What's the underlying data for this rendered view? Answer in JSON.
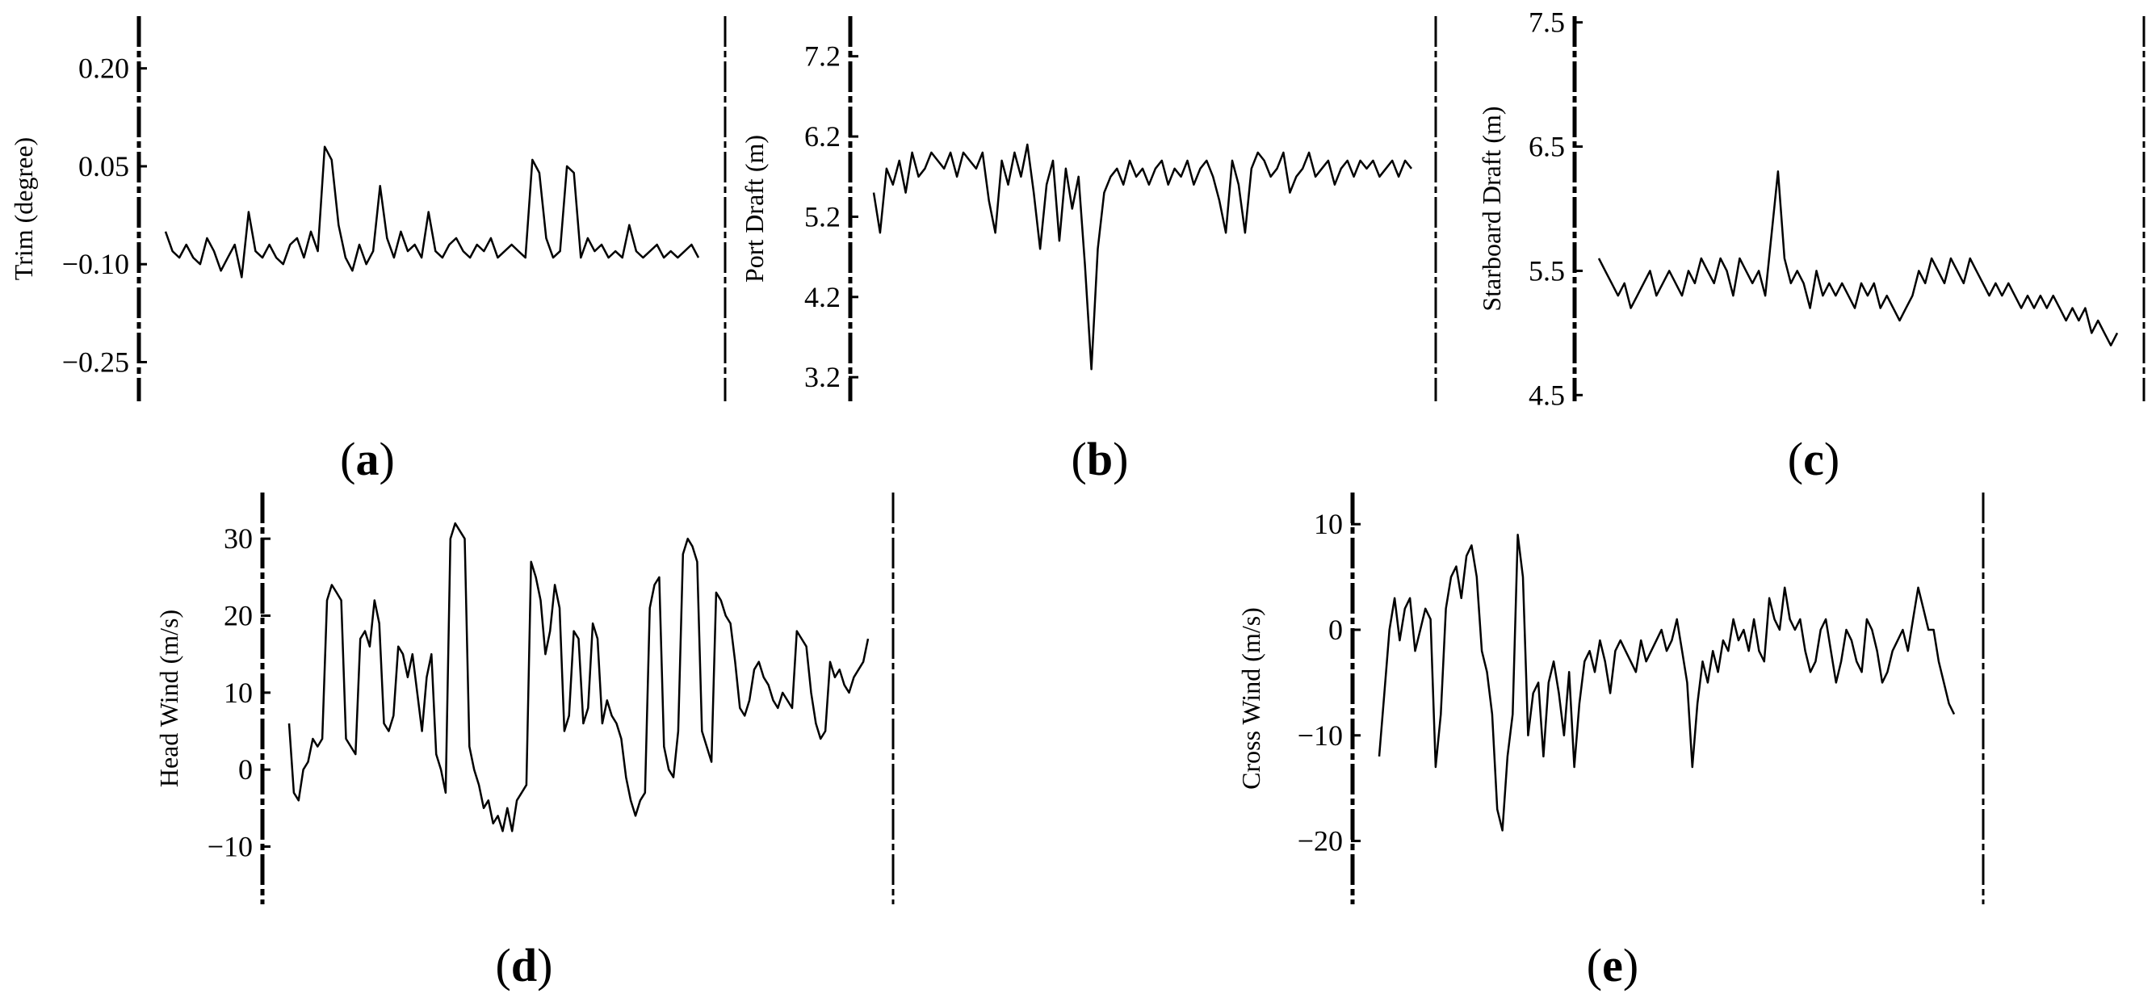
{
  "figure": {
    "panels": [
      {
        "label": "a"
      },
      {
        "label": "b"
      },
      {
        "label": "c"
      },
      {
        "label": "d"
      },
      {
        "label": "e"
      }
    ]
  },
  "chart_data": [
    {
      "type": "line",
      "panel": "a",
      "title": "",
      "xlabel": "",
      "ylabel": "Trim (degree)",
      "yticks": [
        0.2,
        0.05,
        -0.1,
        -0.25
      ],
      "ytick_labels": [
        "0.20",
        "0.05",
        "−0.10",
        "−0.25"
      ],
      "ylim": [
        -0.31,
        0.28
      ],
      "series": [
        {
          "values": [
            -0.05,
            -0.08,
            -0.09,
            -0.07,
            -0.09,
            -0.1,
            -0.06,
            -0.08,
            -0.11,
            -0.09,
            -0.07,
            -0.12,
            -0.02,
            -0.08,
            -0.09,
            -0.07,
            -0.09,
            -0.1,
            -0.07,
            -0.06,
            -0.09,
            -0.05,
            -0.08,
            0.08,
            0.06,
            -0.04,
            -0.09,
            -0.11,
            -0.07,
            -0.1,
            -0.08,
            0.02,
            -0.06,
            -0.09,
            -0.05,
            -0.08,
            -0.07,
            -0.09,
            -0.02,
            -0.08,
            -0.09,
            -0.07,
            -0.06,
            -0.08,
            -0.09,
            -0.07,
            -0.08,
            -0.06,
            -0.09,
            -0.08,
            -0.07,
            -0.08,
            -0.09,
            0.06,
            0.04,
            -0.06,
            -0.09,
            -0.08,
            0.05,
            0.04,
            -0.09,
            -0.06,
            -0.08,
            -0.07,
            -0.09,
            -0.08,
            -0.09,
            -0.04,
            -0.08,
            -0.09,
            -0.08,
            -0.07,
            -0.09,
            -0.08,
            -0.09,
            -0.08,
            -0.07,
            -0.09
          ]
        }
      ]
    },
    {
      "type": "line",
      "panel": "b",
      "title": "",
      "xlabel": "",
      "ylabel": "Port Draft (m)",
      "yticks": [
        7.2,
        6.2,
        5.2,
        4.2,
        3.2
      ],
      "ytick_labels": [
        "7.2",
        "6.2",
        "5.2",
        "4.2",
        "3.2"
      ],
      "ylim": [
        2.9,
        7.7
      ],
      "series": [
        {
          "values": [
            5.5,
            5.0,
            5.8,
            5.6,
            5.9,
            5.5,
            6.0,
            5.7,
            5.8,
            6.0,
            5.9,
            5.8,
            6.0,
            5.7,
            6.0,
            5.9,
            5.8,
            6.0,
            5.4,
            5.0,
            5.9,
            5.6,
            6.0,
            5.7,
            6.1,
            5.5,
            4.8,
            5.6,
            5.9,
            4.9,
            5.8,
            5.3,
            5.7,
            4.6,
            3.3,
            4.8,
            5.5,
            5.7,
            5.8,
            5.6,
            5.9,
            5.7,
            5.8,
            5.6,
            5.8,
            5.9,
            5.6,
            5.8,
            5.7,
            5.9,
            5.6,
            5.8,
            5.9,
            5.7,
            5.4,
            5.0,
            5.9,
            5.6,
            5.0,
            5.8,
            6.0,
            5.9,
            5.7,
            5.8,
            6.0,
            5.5,
            5.7,
            5.8,
            6.0,
            5.7,
            5.8,
            5.9,
            5.6,
            5.8,
            5.9,
            5.7,
            5.9,
            5.8,
            5.9,
            5.7,
            5.8,
            5.9,
            5.7,
            5.9,
            5.8
          ]
        }
      ]
    },
    {
      "type": "line",
      "panel": "c",
      "title": "",
      "xlabel": "",
      "ylabel": "Starboard Draft (m)",
      "yticks": [
        7.5,
        6.5,
        5.5,
        4.5
      ],
      "ytick_labels": [
        "7.5",
        "6.5",
        "5.5",
        "4.5"
      ],
      "ylim": [
        4.45,
        7.55
      ],
      "series": [
        {
          "values": [
            5.6,
            5.5,
            5.4,
            5.3,
            5.4,
            5.2,
            5.3,
            5.4,
            5.5,
            5.3,
            5.4,
            5.5,
            5.4,
            5.3,
            5.5,
            5.4,
            5.6,
            5.5,
            5.4,
            5.6,
            5.5,
            5.3,
            5.6,
            5.5,
            5.4,
            5.5,
            5.3,
            5.8,
            6.3,
            5.6,
            5.4,
            5.5,
            5.4,
            5.2,
            5.5,
            5.3,
            5.4,
            5.3,
            5.4,
            5.3,
            5.2,
            5.4,
            5.3,
            5.4,
            5.2,
            5.3,
            5.2,
            5.1,
            5.2,
            5.3,
            5.5,
            5.4,
            5.6,
            5.5,
            5.4,
            5.6,
            5.5,
            5.4,
            5.6,
            5.5,
            5.4,
            5.3,
            5.4,
            5.3,
            5.4,
            5.3,
            5.2,
            5.3,
            5.2,
            5.3,
            5.2,
            5.3,
            5.2,
            5.1,
            5.2,
            5.1,
            5.2,
            5.0,
            5.1,
            5.0,
            4.9,
            5.0
          ]
        }
      ]
    },
    {
      "type": "line",
      "panel": "d",
      "title": "",
      "xlabel": "",
      "ylabel": "Head Wind (m/s)",
      "yticks": [
        30,
        20,
        10,
        0,
        -10
      ],
      "ytick_labels": [
        "30",
        "20",
        "10",
        "0",
        "−10"
      ],
      "ylim": [
        -17.5,
        36
      ],
      "series": [
        {
          "values": [
            6,
            -3,
            -4,
            0,
            1,
            4,
            3,
            4,
            22,
            24,
            23,
            22,
            4,
            3,
            2,
            17,
            18,
            16,
            22,
            19,
            6,
            5,
            7,
            16,
            15,
            12,
            15,
            10,
            5,
            12,
            15,
            2,
            0,
            -3,
            30,
            32,
            31,
            30,
            3,
            0,
            -2,
            -5,
            -4,
            -7,
            -6,
            -8,
            -5,
            -8,
            -4,
            -3,
            -2,
            27,
            25,
            22,
            15,
            18,
            24,
            21,
            5,
            7,
            18,
            17,
            6,
            8,
            19,
            17,
            6,
            9,
            7,
            6,
            4,
            -1,
            -4,
            -6,
            -4,
            -3,
            21,
            24,
            25,
            3,
            0,
            -1,
            5,
            28,
            30,
            29,
            27,
            5,
            3,
            1,
            23,
            22,
            20,
            19,
            14,
            8,
            7,
            9,
            13,
            14,
            12,
            11,
            9,
            8,
            10,
            9,
            8,
            18,
            17,
            16,
            10,
            6,
            4,
            5,
            14,
            12,
            13,
            11,
            10,
            12,
            13,
            14,
            17
          ]
        }
      ]
    },
    {
      "type": "line",
      "panel": "e",
      "title": "",
      "xlabel": "",
      "ylabel": "Cross Wind (m/s)",
      "yticks": [
        10,
        0,
        -10,
        -20
      ],
      "ytick_labels": [
        "10",
        "0",
        "−10",
        "−20"
      ],
      "ylim": [
        -26,
        13
      ],
      "series": [
        {
          "values": [
            -12,
            -6,
            0,
            3,
            -1,
            2,
            3,
            -2,
            0,
            2,
            1,
            -13,
            -8,
            2,
            5,
            6,
            3,
            7,
            8,
            5,
            -2,
            -4,
            -8,
            -17,
            -19,
            -12,
            -8,
            9,
            5,
            -10,
            -6,
            -5,
            -12,
            -5,
            -3,
            -6,
            -10,
            -4,
            -13,
            -7,
            -3,
            -2,
            -4,
            -1,
            -3,
            -6,
            -2,
            -1,
            -2,
            -3,
            -4,
            -1,
            -3,
            -2,
            -1,
            0,
            -2,
            -1,
            1,
            -2,
            -5,
            -13,
            -7,
            -3,
            -5,
            -2,
            -4,
            -1,
            -2,
            1,
            -1,
            0,
            -2,
            1,
            -2,
            -3,
            3,
            1,
            0,
            4,
            1,
            0,
            1,
            -2,
            -4,
            -3,
            0,
            1,
            -2,
            -5,
            -3,
            0,
            -1,
            -3,
            -4,
            1,
            0,
            -2,
            -5,
            -4,
            -2,
            -1,
            0,
            -2,
            1,
            4,
            2,
            0,
            0,
            -3,
            -5,
            -7,
            -8
          ]
        }
      ]
    }
  ]
}
